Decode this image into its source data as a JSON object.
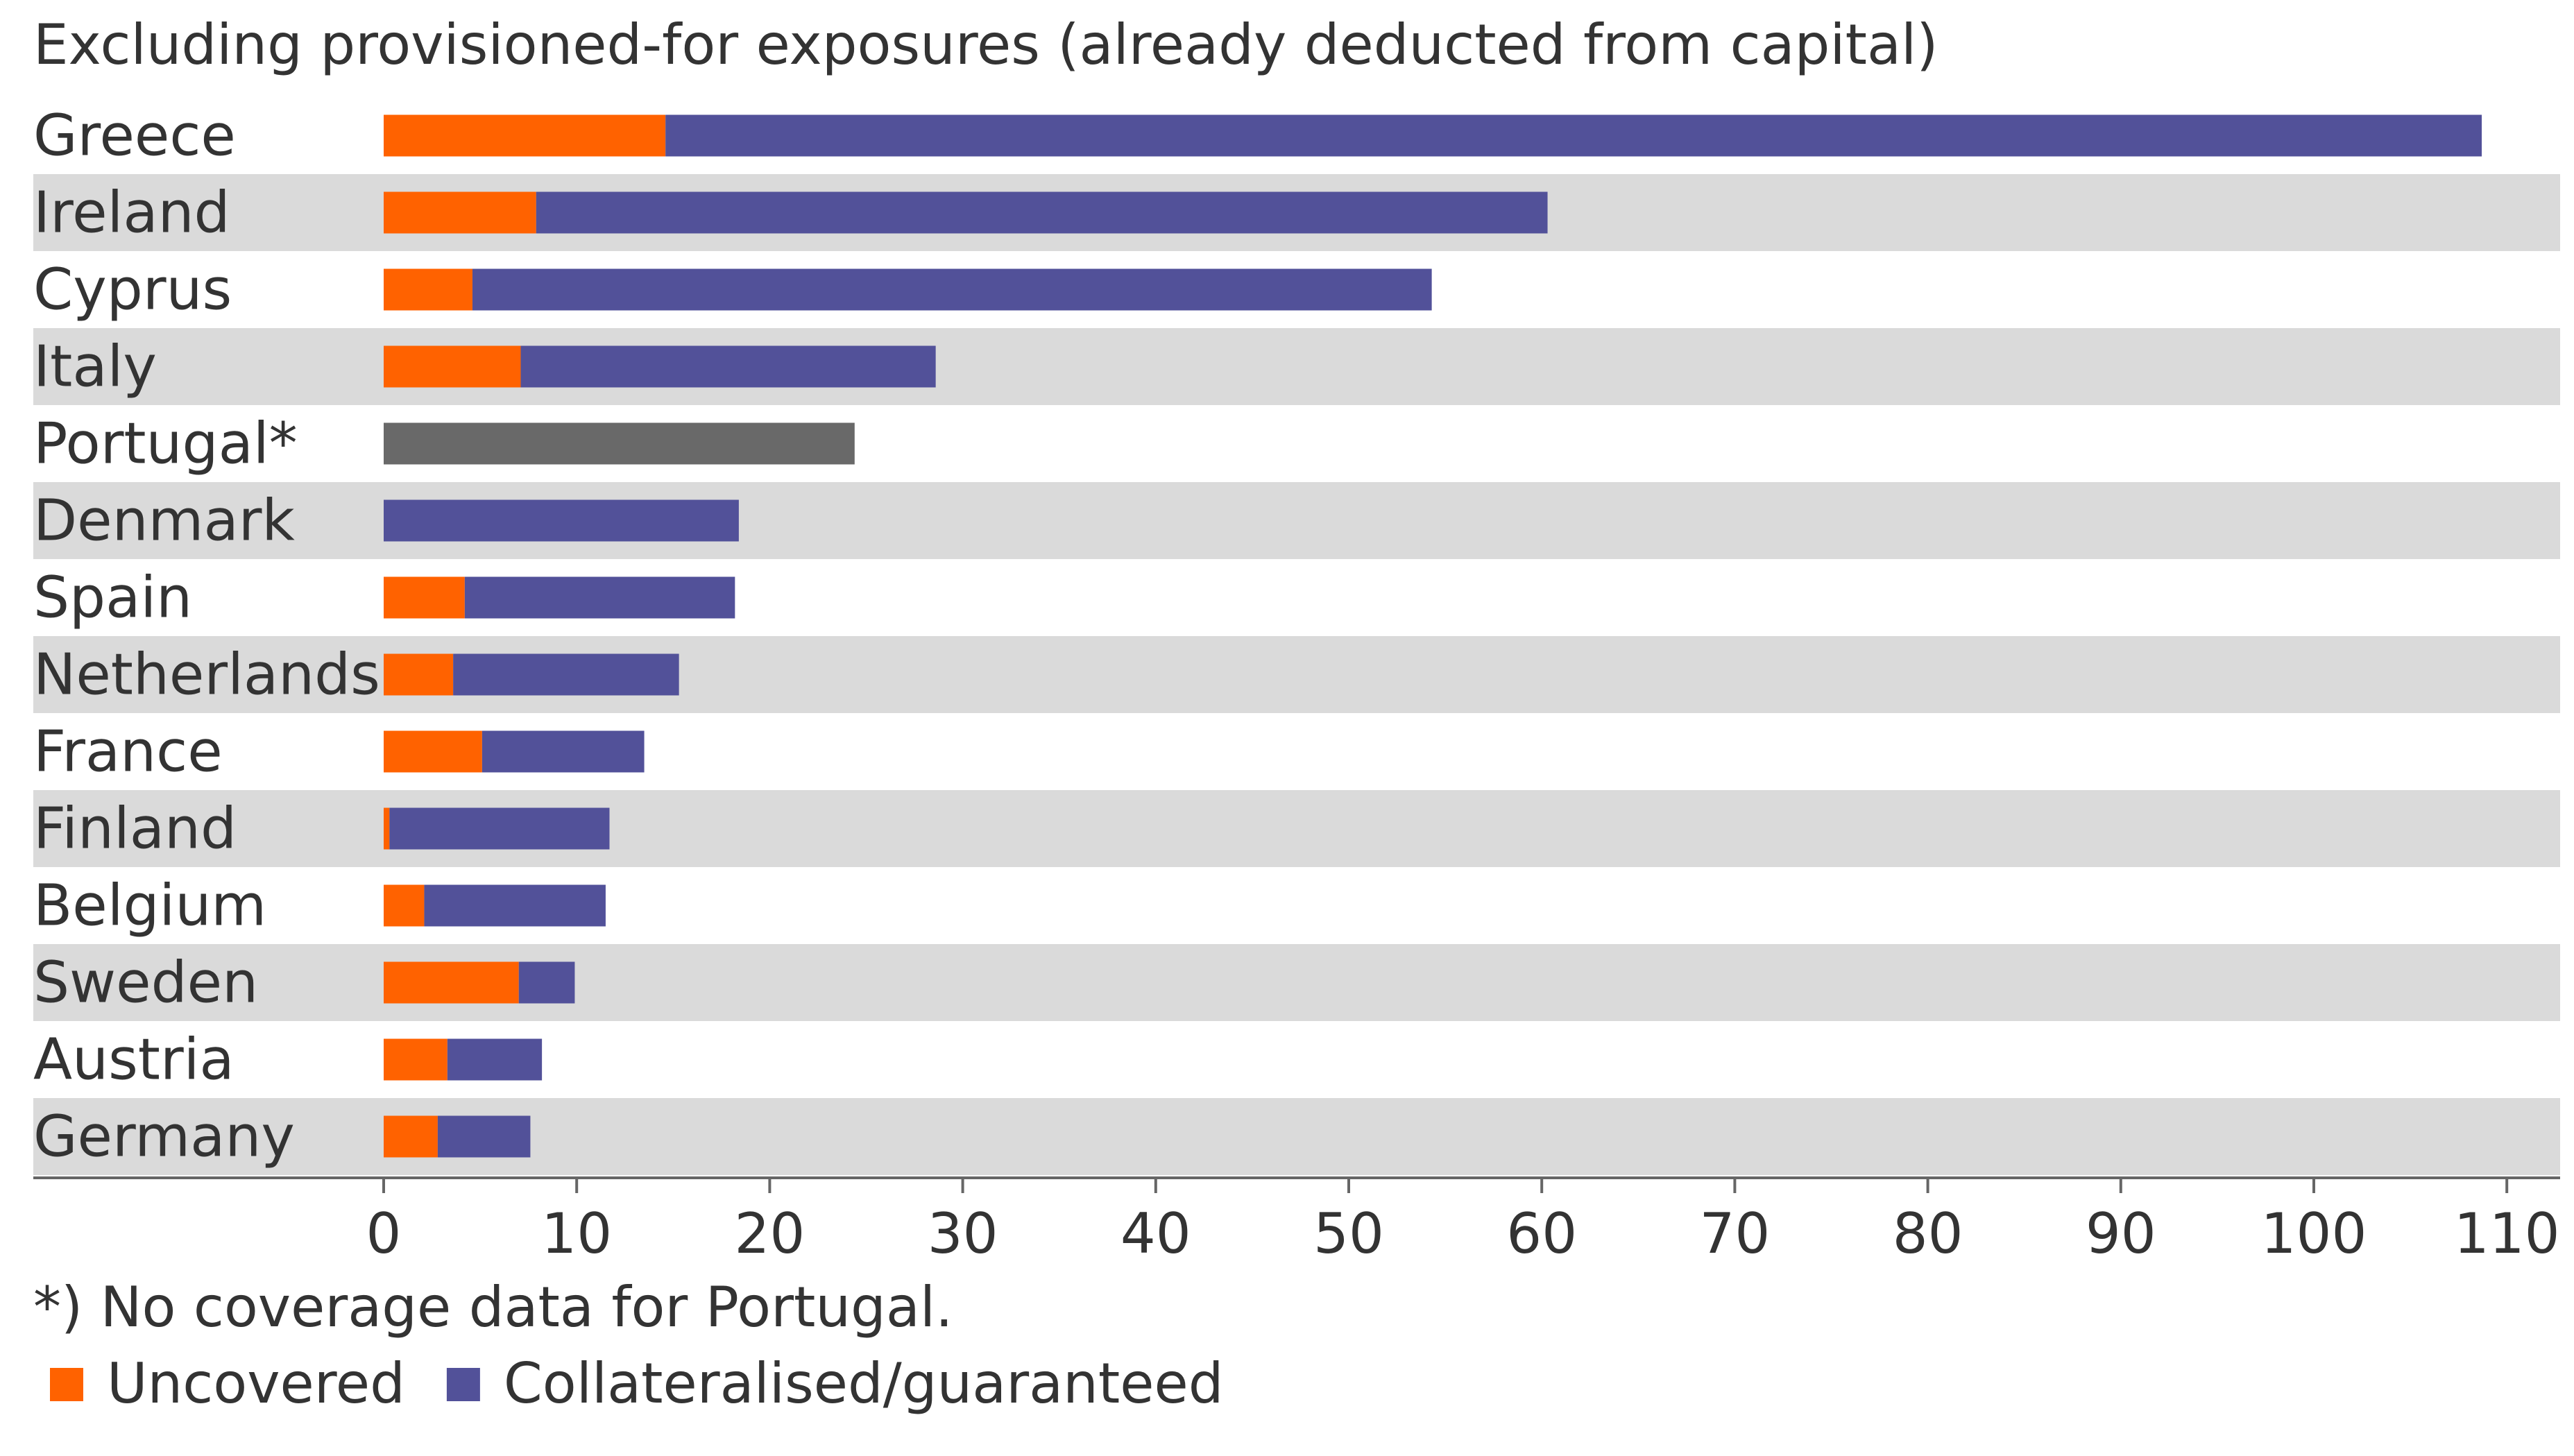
{
  "chart_data": {
    "type": "bar",
    "orientation": "horizontal",
    "stacked": true,
    "title": "Excluding provisioned-for exposures (already deducted from capital)",
    "xlabel": "",
    "ylabel": "",
    "xlim": [
      0,
      110
    ],
    "ticks": [
      0,
      10,
      20,
      30,
      40,
      50,
      60,
      70,
      80,
      90,
      100,
      110
    ],
    "tick_labels": [
      "0",
      "10",
      "20",
      "30",
      "40",
      "50",
      "60",
      "70",
      "80",
      "90",
      "100",
      "110"
    ],
    "categories": [
      "Greece",
      "Ireland",
      "Cyprus",
      "Italy",
      "Portugal*",
      "Denmark",
      "Spain",
      "Netherlands",
      "France",
      "Finland",
      "Belgium",
      "Sweden",
      "Austria",
      "Germany"
    ],
    "series": [
      {
        "name": "Uncovered",
        "color": "#ff6200",
        "values": [
          14.6,
          7.9,
          4.6,
          7.1,
          null,
          0,
          4.2,
          3.6,
          5.1,
          0.3,
          2.1,
          7.0,
          3.3,
          2.8
        ]
      },
      {
        "name": "Collateralised/guaranteed",
        "color": "#525199",
        "values": [
          94.1,
          52.4,
          49.7,
          21.5,
          null,
          18.4,
          14.0,
          11.7,
          8.4,
          11.4,
          9.4,
          2.9,
          4.9,
          4.8
        ]
      },
      {
        "name": "No coverage data",
        "color": "#696969",
        "values": [
          null,
          null,
          null,
          null,
          24.4,
          null,
          null,
          null,
          null,
          null,
          null,
          null,
          null,
          null
        ]
      }
    ],
    "footnote": "*) No coverage data for Portugal.",
    "legend": [
      "Uncovered",
      "Collateralised/guaranteed"
    ],
    "legend_position": "bottom-left",
    "grid": false,
    "row_shading": "alternate"
  },
  "colors": {
    "row_band": "#dadada",
    "axis": "#666666",
    "text": "#333333"
  }
}
